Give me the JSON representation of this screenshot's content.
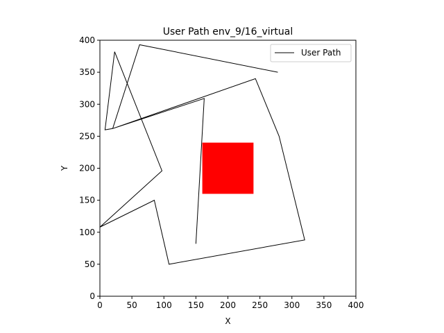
{
  "chart_data": {
    "type": "line",
    "title": "User Path env_9/16_virtual",
    "xlabel": "X",
    "ylabel": "Y",
    "xlim": [
      0,
      400
    ],
    "ylim": [
      0,
      400
    ],
    "xticks": [
      0,
      50,
      100,
      150,
      200,
      250,
      300,
      350,
      400
    ],
    "yticks": [
      0,
      50,
      100,
      150,
      200,
      250,
      300,
      350,
      400
    ],
    "grid": false,
    "legend": {
      "position": "top-right",
      "entries": [
        "User Path"
      ]
    },
    "series": [
      {
        "name": "User Path",
        "color": "#000000",
        "points": [
          [
            150,
            82
          ],
          [
            163,
            309
          ],
          [
            20,
            262
          ],
          [
            62,
            393
          ],
          [
            278,
            350
          ]
        ],
        "segments_full": [
          [
            150,
            82
          ],
          [
            163,
            309
          ],
          [
            20,
            262
          ],
          [
            62,
            393
          ]
        ]
      }
    ],
    "path": [
      [
        150,
        82
      ],
      [
        163,
        309
      ],
      [
        20,
        262
      ],
      [
        62,
        393
      ],
      [
        278,
        350
      ]
    ],
    "obstacle": {
      "color": "#ff0000",
      "x": [
        160,
        240
      ],
      "y": [
        160,
        240
      ]
    }
  }
}
